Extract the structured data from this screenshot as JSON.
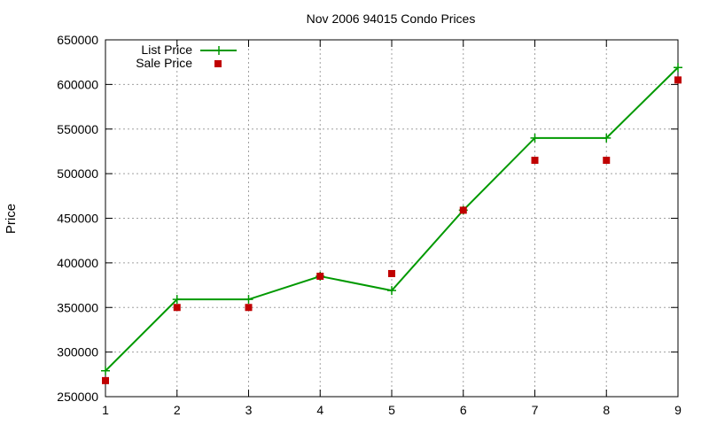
{
  "chart_data": {
    "type": "line",
    "title": "Nov 2006 94015 Condo Prices",
    "xlabel": "",
    "ylabel": "Price",
    "xlim": [
      1,
      9
    ],
    "ylim": [
      250000,
      650000
    ],
    "x_ticks": [
      1,
      2,
      3,
      4,
      5,
      6,
      7,
      8,
      9
    ],
    "y_ticks": [
      250000,
      300000,
      350000,
      400000,
      450000,
      500000,
      550000,
      600000,
      650000
    ],
    "grid": true,
    "legend": "top-left",
    "series": [
      {
        "name": "List Price",
        "style": "line-with-plus-markers",
        "color": "#009900",
        "x": [
          1,
          2,
          3,
          4,
          5,
          6,
          7,
          8,
          9
        ],
        "y": [
          279000,
          359000,
          359000,
          385000,
          369000,
          459000,
          540000,
          540000,
          619000
        ]
      },
      {
        "name": "Sale Price",
        "style": "square-markers",
        "color": "#c00000",
        "x": [
          1,
          2,
          3,
          4,
          5,
          6,
          7,
          8,
          9
        ],
        "y": [
          268000,
          350000,
          350000,
          385000,
          388000,
          459000,
          515000,
          515000,
          605000
        ]
      }
    ]
  }
}
